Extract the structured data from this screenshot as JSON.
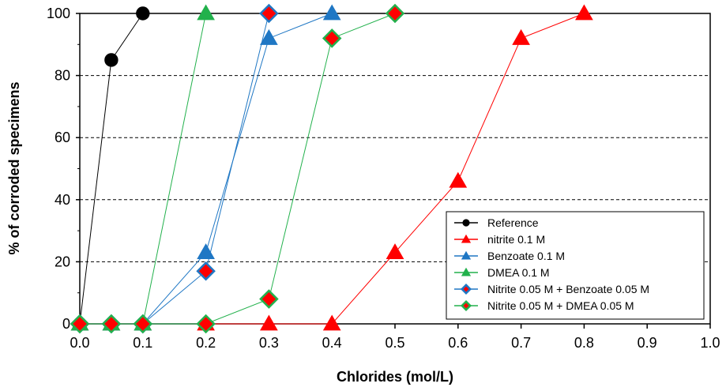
{
  "chart_data": {
    "type": "line",
    "xlabel": "Chlorides (mol/L)",
    "ylabel": "% of corroded specimens",
    "xlim": [
      0.0,
      1.0
    ],
    "ylim": [
      0,
      100
    ],
    "x_ticks": [
      "0.0",
      "0.1",
      "0.2",
      "0.3",
      "0.4",
      "0.5",
      "0.6",
      "0.7",
      "0.8",
      "0.9",
      "1.0"
    ],
    "y_ticks": [
      "0",
      "20",
      "40",
      "60",
      "80",
      "100"
    ],
    "grid": "horizontal dashed",
    "legend_position": "bottom-right",
    "series": [
      {
        "name": "Reference",
        "color": "#000000",
        "marker": "circle",
        "fill": "#000000",
        "x": [
          0.0,
          0.05,
          0.1
        ],
        "y": [
          0,
          85,
          100
        ]
      },
      {
        "name": "nitrite 0.1 M",
        "color": "#ff0000",
        "marker": "triangle",
        "fill": "#ff0000",
        "x": [
          0.0,
          0.05,
          0.1,
          0.2,
          0.3,
          0.4,
          0.5,
          0.6,
          0.7,
          0.8
        ],
        "y": [
          0,
          0,
          0,
          0,
          0,
          0,
          23,
          46,
          92,
          100
        ]
      },
      {
        "name": "Benzoate 0.1 M",
        "color": "#1f77c4",
        "marker": "triangle",
        "fill": "#1f77c4",
        "x": [
          0.0,
          0.05,
          0.1,
          0.2,
          0.3,
          0.4
        ],
        "y": [
          0,
          0,
          0,
          23,
          92,
          100
        ]
      },
      {
        "name": "DMEA 0.1 M",
        "color": "#22b14c",
        "marker": "triangle",
        "fill": "#22b14c",
        "x": [
          0.0,
          0.05,
          0.1,
          0.2
        ],
        "y": [
          0,
          0,
          0,
          100
        ]
      },
      {
        "name": "Nitrite 0.05 M + Benzoate 0.05 M",
        "color": "#1f77c4",
        "marker": "diamond",
        "fill": "#ff0000",
        "x": [
          0.0,
          0.05,
          0.1,
          0.2,
          0.3
        ],
        "y": [
          0,
          0,
          0,
          17,
          100
        ]
      },
      {
        "name": "Nitrite 0.05 M + DMEA 0.05 M",
        "color": "#22b14c",
        "marker": "diamond",
        "fill": "#ff0000",
        "x": [
          0.0,
          0.05,
          0.1,
          0.2,
          0.3,
          0.4,
          0.5
        ],
        "y": [
          0,
          0,
          0,
          0,
          8,
          92,
          100
        ]
      }
    ]
  }
}
